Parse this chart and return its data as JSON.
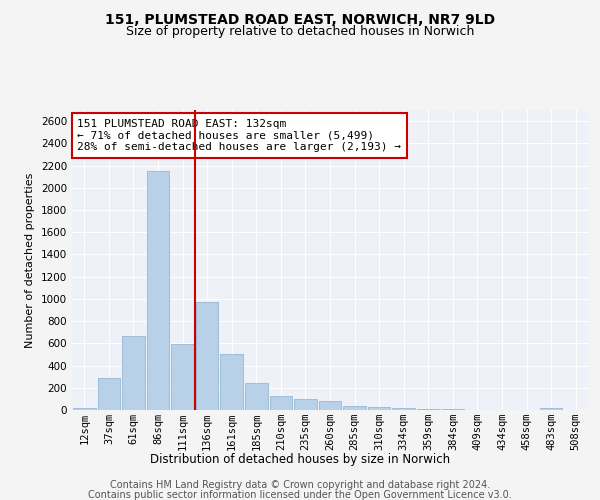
{
  "title1": "151, PLUMSTEAD ROAD EAST, NORWICH, NR7 9LD",
  "title2": "Size of property relative to detached houses in Norwich",
  "xlabel": "Distribution of detached houses by size in Norwich",
  "ylabel": "Number of detached properties",
  "categories": [
    "12sqm",
    "37sqm",
    "61sqm",
    "86sqm",
    "111sqm",
    "136sqm",
    "161sqm",
    "185sqm",
    "210sqm",
    "235sqm",
    "260sqm",
    "285sqm",
    "310sqm",
    "334sqm",
    "359sqm",
    "384sqm",
    "409sqm",
    "434sqm",
    "458sqm",
    "483sqm",
    "508sqm"
  ],
  "values": [
    20,
    290,
    670,
    2150,
    590,
    970,
    500,
    240,
    125,
    95,
    80,
    35,
    25,
    15,
    10,
    7,
    4,
    2,
    0,
    20,
    0
  ],
  "bar_color": "#b8d0e8",
  "bar_edge_color": "#8ab0d0",
  "vline_x_idx": 4,
  "vline_color": "#cc0000",
  "annotation_title": "151 PLUMSTEAD ROAD EAST: 132sqm",
  "annotation_line1": "← 71% of detached houses are smaller (5,499)",
  "annotation_line2": "28% of semi-detached houses are larger (2,193) →",
  "annotation_box_color": "#cc0000",
  "ylim": [
    0,
    2700
  ],
  "yticks": [
    0,
    200,
    400,
    600,
    800,
    1000,
    1200,
    1400,
    1600,
    1800,
    2000,
    2200,
    2400,
    2600
  ],
  "footer1": "Contains HM Land Registry data © Crown copyright and database right 2024.",
  "footer2": "Contains public sector information licensed under the Open Government Licence v3.0.",
  "bg_color": "#eef2f8",
  "grid_color": "#ffffff",
  "outer_bg": "#f4f4f4",
  "title1_fontsize": 10,
  "title2_fontsize": 9,
  "xlabel_fontsize": 8.5,
  "ylabel_fontsize": 8,
  "tick_fontsize": 7.5,
  "annotation_fontsize": 8,
  "footer_fontsize": 7
}
